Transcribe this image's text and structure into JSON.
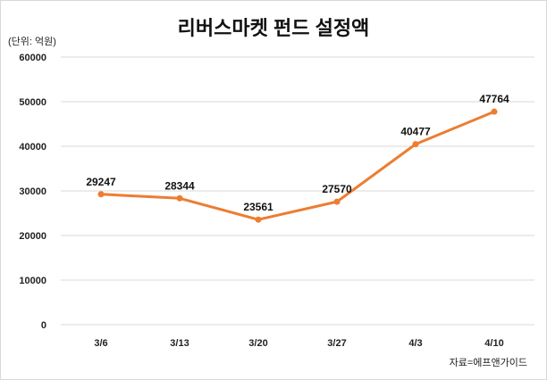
{
  "chart_data": {
    "type": "line",
    "title": "리버스마켓 펀드 설정액",
    "unit_label": "(단위: 억원)",
    "source": "자료=에프앤가이드",
    "categories": [
      "3/6",
      "3/13",
      "3/20",
      "3/27",
      "4/3",
      "4/10"
    ],
    "series": [
      {
        "name": "설정액",
        "values": [
          29247,
          28344,
          23561,
          27570,
          40477,
          47764
        ],
        "color": "#ED7D31"
      }
    ],
    "ylim": [
      0,
      60000
    ],
    "yticks": [
      0,
      10000,
      20000,
      30000,
      40000,
      50000,
      60000
    ],
    "grid": true,
    "xlabel": "",
    "ylabel": ""
  }
}
